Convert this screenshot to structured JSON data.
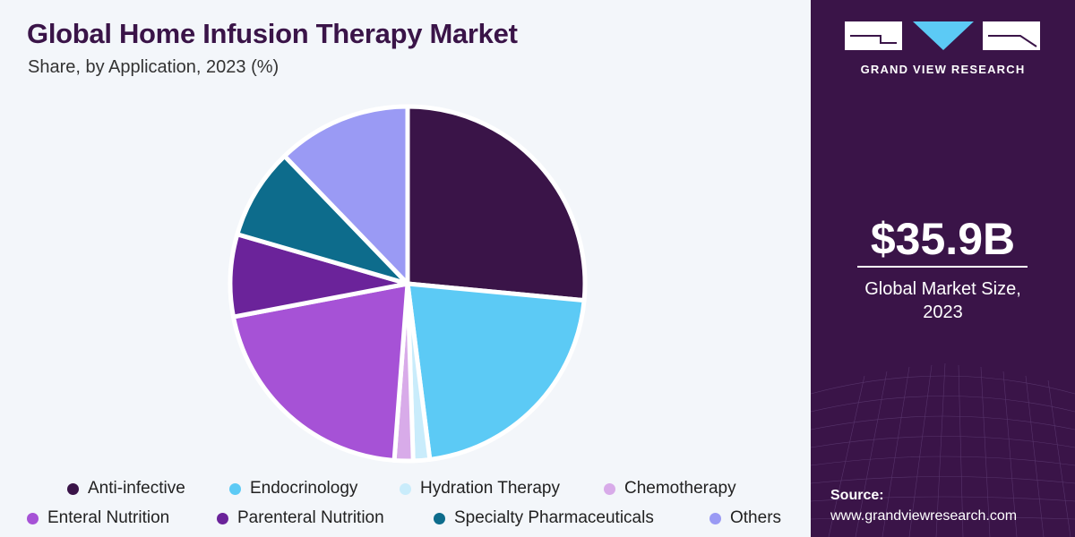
{
  "header": {
    "title": "Global Home Infusion Therapy Market",
    "subtitle": "Share, by Application, 2023 (%)"
  },
  "chart_data": {
    "type": "pie",
    "title": "Global Home Infusion Therapy Market",
    "subtitle": "Share, by Application, 2023 (%)",
    "slices": [
      {
        "label": "Anti-infective",
        "value": 26.5,
        "color": "#3a1448"
      },
      {
        "label": "Endocrinology",
        "value": 21.5,
        "color": "#5ccaf5"
      },
      {
        "label": "Hydration Therapy",
        "value": 1.5,
        "color": "#c9ecfb"
      },
      {
        "label": "Chemotherapy",
        "value": 1.7,
        "color": "#d8abe9"
      },
      {
        "label": "Enteral Nutrition",
        "value": 20.8,
        "color": "#a652d6"
      },
      {
        "label": "Parenteral Nutrition",
        "value": 7.5,
        "color": "#6b239a"
      },
      {
        "label": "Specialty Pharmaceuticals",
        "value": 8.3,
        "color": "#0d6c8c"
      },
      {
        "label": "Others",
        "value": 12.2,
        "color": "#9a9af4"
      }
    ],
    "start_angle": "12 o'clock",
    "direction": "clockwise",
    "legend_position": "bottom"
  },
  "sidebar": {
    "brand": "GRAND VIEW RESEARCH",
    "market_value": "$35.9B",
    "market_label_line1": "Global Market Size,",
    "market_label_line2": "2023",
    "source_label": "Source:",
    "source_url": "www.grandviewresearch.com",
    "logo_icon": "gvr-logo-icon"
  }
}
